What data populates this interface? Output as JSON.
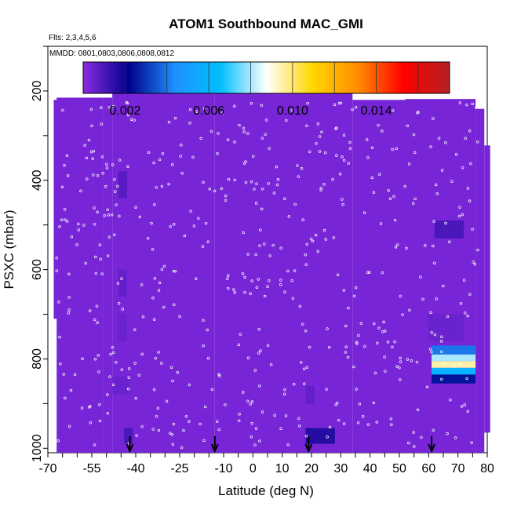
{
  "chart_data": {
    "type": "heatmap",
    "title": "ATOM1 Southbound MAC_GMI",
    "flights_note": "Flts: 2,3,4,5,6",
    "dates_note": "MMDD: 0801,0803,0806,0808,0812",
    "xlabel": "Latitude (deg N)",
    "ylabel": "PSXC (mbar)",
    "xlim": [
      -70,
      80
    ],
    "ylim": [
      1010,
      100
    ],
    "x_ticks": [
      -70,
      -55,
      -40,
      -25,
      -10,
      0,
      10,
      20,
      30,
      40,
      50,
      60,
      70,
      80
    ],
    "y_ticks": [
      200,
      400,
      600,
      800,
      1000
    ],
    "colorbar": {
      "min": 0.0,
      "max": 0.0175,
      "ticks": [
        0.002,
        0.006,
        0.01,
        0.014
      ],
      "tick_labels": [
        "0.002",
        "0.006",
        "0.010",
        "0.014"
      ],
      "colors": [
        "#8a2be2",
        "#00008b",
        "#1e90ff",
        "#00bfff",
        "#ffffff",
        "#ffd700",
        "#ff8c00",
        "#ff0000",
        "#b22222"
      ]
    },
    "background_value": 0.0003,
    "cells": [
      {
        "lat": [
          -46,
          -43
        ],
        "p": [
          380,
          440
        ],
        "v": 0.0008
      },
      {
        "lat": [
          -46,
          -43
        ],
        "p": [
          600,
          660
        ],
        "v": 0.0006
      },
      {
        "lat": [
          -46,
          -43
        ],
        "p": [
          700,
          760
        ],
        "v": 0.0005
      },
      {
        "lat": [
          -48,
          -42
        ],
        "p": [
          840,
          880
        ],
        "v": 0.0005
      },
      {
        "lat": [
          -44,
          -41
        ],
        "p": [
          955,
          990
        ],
        "v": 0.001
      },
      {
        "lat": [
          18,
          21
        ],
        "p": [
          860,
          900
        ],
        "v": 0.0006
      },
      {
        "lat": [
          18,
          28
        ],
        "p": [
          955,
          990
        ],
        "v": 0.0016
      },
      {
        "lat": [
          62,
          72
        ],
        "p": [
          490,
          530
        ],
        "v": 0.001
      },
      {
        "lat": [
          60,
          72
        ],
        "p": [
          700,
          760
        ],
        "v": 0.0005
      },
      {
        "lat": [
          61,
          76
        ],
        "p": [
          770,
          790
        ],
        "v": 0.004
      },
      {
        "lat": [
          61,
          76
        ],
        "p": [
          790,
          805
        ],
        "v": 0.008
      },
      {
        "lat": [
          61,
          76
        ],
        "p": [
          805,
          820
        ],
        "v": 0.0095
      },
      {
        "lat": [
          61,
          76
        ],
        "p": [
          820,
          835
        ],
        "v": 0.006
      },
      {
        "lat": [
          61,
          76
        ],
        "p": [
          835,
          855
        ],
        "v": 0.0025
      }
    ],
    "arrows_lat": [
      -42,
      -13,
      19,
      61
    ]
  }
}
